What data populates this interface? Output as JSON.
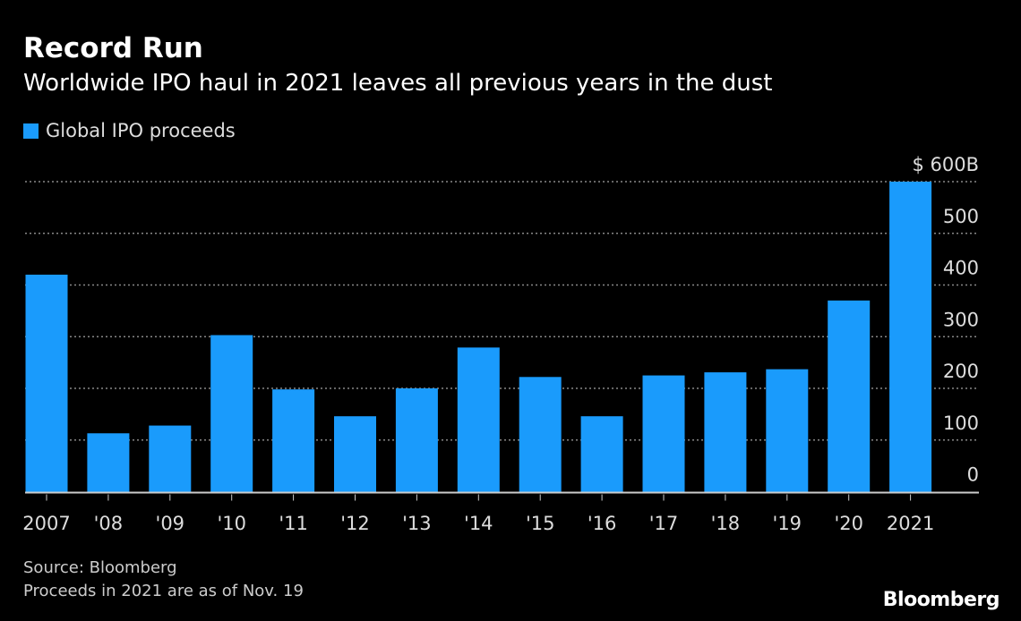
{
  "chart_data": {
    "type": "bar",
    "title": "Record Run",
    "subtitle": "Worldwide IPO haul in 2021 leaves all previous years in the dust",
    "categories": [
      "2007",
      "'08",
      "'09",
      "'10",
      "'11",
      "'12",
      "'13",
      "'14",
      "'15",
      "'16",
      "'17",
      "'18",
      "'19",
      "'20",
      "2021"
    ],
    "series": [
      {
        "name": "Global IPO proceeds",
        "values": [
          420,
          113,
          128,
          303,
          198,
          146,
          200,
          279,
          222,
          146,
          225,
          231,
          237,
          370,
          600
        ]
      }
    ],
    "ylim": [
      0,
      600
    ],
    "yticks": [
      0,
      100,
      200,
      300,
      400,
      500,
      600
    ],
    "ytick_labels": [
      "0",
      "100",
      "200",
      "300",
      "400",
      "500",
      "$ 600B"
    ],
    "y_axis_side": "right",
    "grid": true,
    "legend": "top-left",
    "bar_color": "#1a9bfc"
  },
  "footer": {
    "source": "Source: Bloomberg",
    "note": "Proceeds in 2021 are as of Nov. 19",
    "logo": "Bloomberg"
  }
}
